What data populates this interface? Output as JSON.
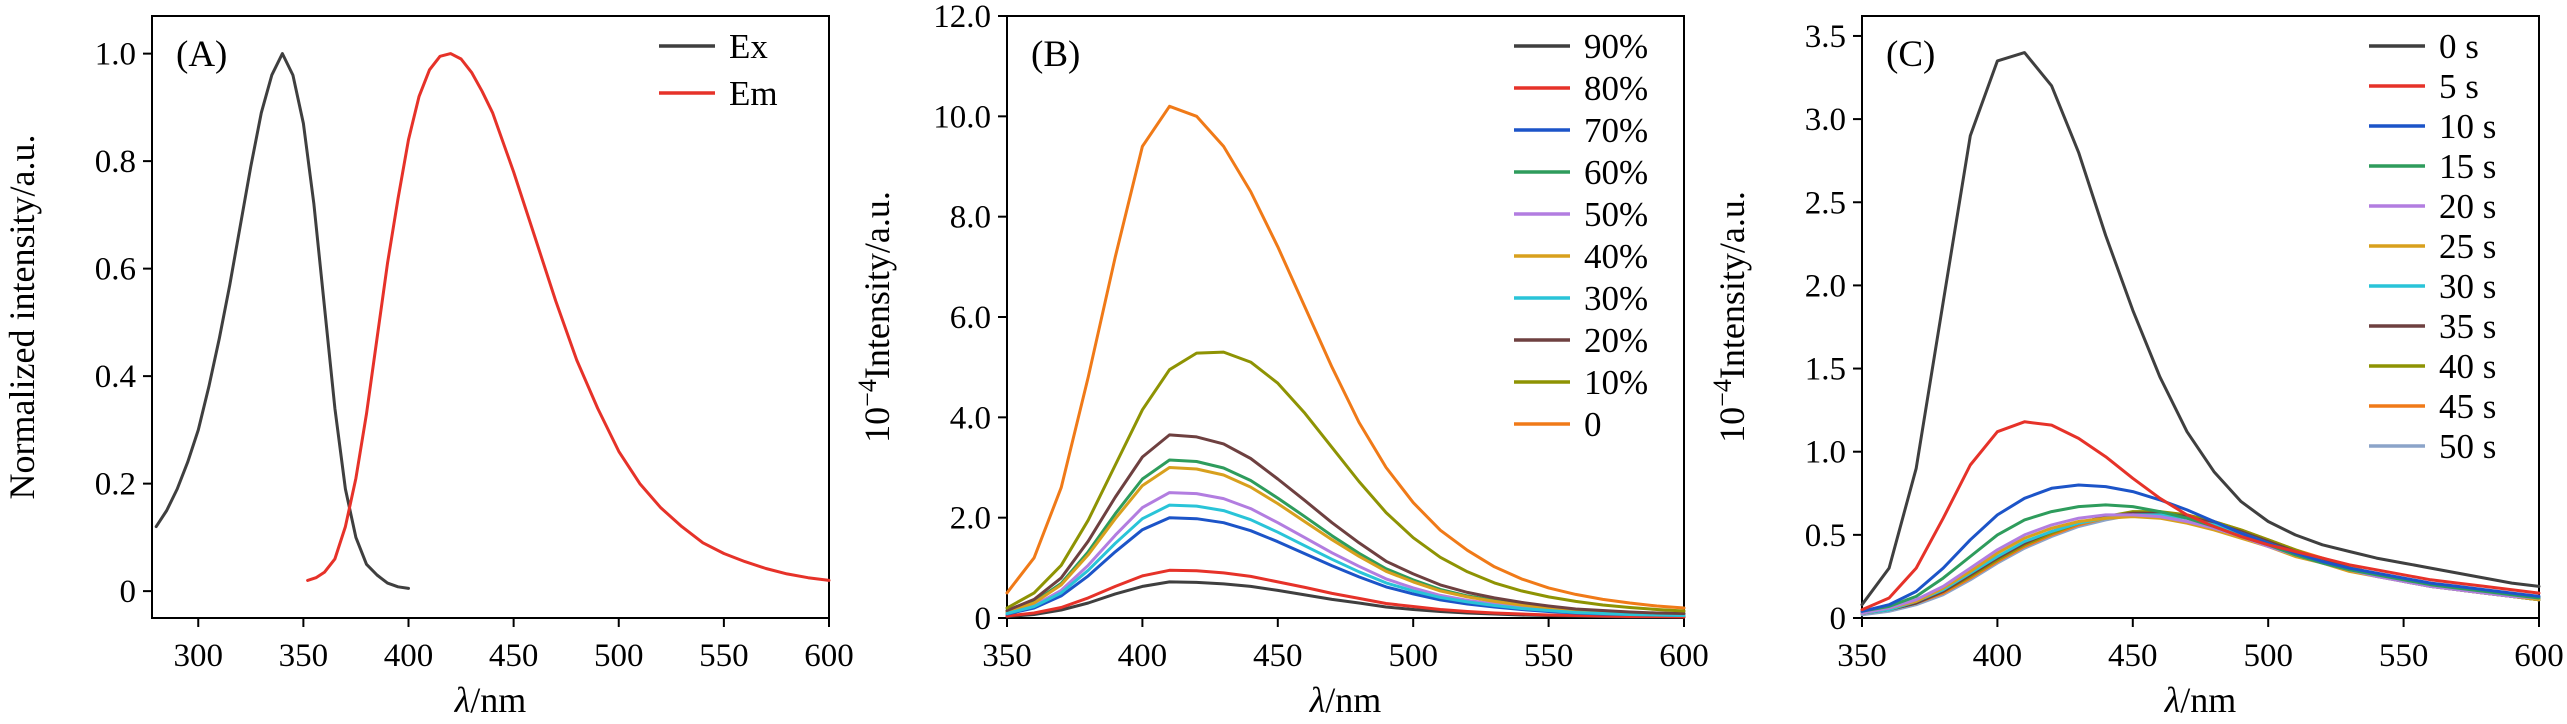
{
  "figure_title": "",
  "chart_data": [
    {
      "type": "line",
      "panel_label": "(A)",
      "xlabel": [
        {
          "t": "λ",
          "i": true
        },
        {
          "t": "/nm"
        }
      ],
      "ylabel": [
        {
          "t": "Normalized intensity/a.u."
        }
      ],
      "xlim": [
        278,
        600
      ],
      "ylim": [
        -0.05,
        1.07
      ],
      "xticks": {
        "values": [
          300,
          350,
          400,
          450,
          500,
          550,
          600
        ],
        "labels": [
          "300",
          "350",
          "400",
          "450",
          "500",
          "550",
          "600"
        ]
      },
      "yticks": {
        "values": [
          0,
          0.2,
          0.4,
          0.6,
          0.8,
          1.0
        ],
        "labels": [
          "0",
          "0.2",
          "0.4",
          "0.6",
          "0.8",
          "1.0"
        ]
      },
      "legend": {
        "position": "top-right"
      },
      "draw_reversed": false,
      "series": [
        {
          "name": "Ex",
          "color": "#3f3f3f",
          "x": [
            280,
            285,
            290,
            295,
            300,
            305,
            310,
            315,
            320,
            325,
            330,
            335,
            340,
            345,
            350,
            355,
            360,
            365,
            370,
            375,
            380,
            385,
            390,
            395,
            400
          ],
          "y": [
            0.12,
            0.15,
            0.19,
            0.24,
            0.3,
            0.38,
            0.47,
            0.57,
            0.68,
            0.79,
            0.89,
            0.96,
            1.0,
            0.96,
            0.87,
            0.72,
            0.53,
            0.34,
            0.19,
            0.1,
            0.05,
            0.03,
            0.015,
            0.008,
            0.005
          ]
        },
        {
          "name": "Em",
          "color": "#e63229",
          "x": [
            352,
            356,
            360,
            365,
            370,
            375,
            380,
            385,
            390,
            395,
            400,
            405,
            410,
            415,
            420,
            425,
            430,
            435,
            440,
            450,
            460,
            470,
            480,
            490,
            500,
            510,
            520,
            530,
            540,
            550,
            560,
            570,
            580,
            590,
            600
          ],
          "y": [
            0.02,
            0.025,
            0.035,
            0.06,
            0.12,
            0.21,
            0.33,
            0.47,
            0.61,
            0.73,
            0.84,
            0.92,
            0.97,
            0.995,
            1.0,
            0.99,
            0.965,
            0.93,
            0.89,
            0.78,
            0.66,
            0.54,
            0.43,
            0.34,
            0.26,
            0.2,
            0.155,
            0.12,
            0.09,
            0.07,
            0.055,
            0.042,
            0.032,
            0.025,
            0.02
          ]
        }
      ]
    },
    {
      "type": "line",
      "panel_label": "(B)",
      "xlabel": [
        {
          "t": "λ",
          "i": true
        },
        {
          "t": "/nm"
        }
      ],
      "ylabel": [
        {
          "t": "10"
        },
        {
          "t": "−4",
          "sup": true
        },
        {
          "t": "Intensity/a.u."
        }
      ],
      "xlim": [
        350,
        600
      ],
      "ylim": [
        0,
        12
      ],
      "xticks": {
        "values": [
          350,
          400,
          450,
          500,
          550,
          600
        ],
        "labels": [
          "350",
          "400",
          "450",
          "500",
          "550",
          "600"
        ]
      },
      "yticks": {
        "values": [
          0,
          2,
          4,
          6,
          8,
          10,
          12
        ],
        "labels": [
          "0",
          "2.0",
          "4.0",
          "6.0",
          "8.0",
          "10.0",
          "12.0"
        ]
      },
      "legend": {
        "position": "top-right"
      },
      "draw_reversed": false,
      "x_shared": [
        350,
        360,
        370,
        380,
        390,
        400,
        410,
        420,
        430,
        440,
        450,
        460,
        470,
        480,
        490,
        500,
        510,
        520,
        530,
        540,
        550,
        560,
        570,
        580,
        590,
        600
      ],
      "series": [
        {
          "name": "90%",
          "color": "#3f3f3f",
          "y": [
            0.03,
            0.07,
            0.16,
            0.3,
            0.48,
            0.63,
            0.72,
            0.71,
            0.68,
            0.63,
            0.55,
            0.46,
            0.37,
            0.3,
            0.22,
            0.17,
            0.13,
            0.1,
            0.08,
            0.06,
            0.05,
            0.04,
            0.03,
            0.02,
            0.02,
            0.02
          ]
        },
        {
          "name": "80%",
          "color": "#e63229",
          "y": [
            0.04,
            0.1,
            0.21,
            0.4,
            0.63,
            0.84,
            0.95,
            0.94,
            0.9,
            0.83,
            0.72,
            0.61,
            0.49,
            0.39,
            0.29,
            0.23,
            0.17,
            0.13,
            0.1,
            0.08,
            0.06,
            0.05,
            0.04,
            0.03,
            0.03,
            0.02
          ]
        },
        {
          "name": "70%",
          "color": "#1c54c8",
          "y": [
            0.08,
            0.2,
            0.44,
            0.84,
            1.32,
            1.76,
            2.0,
            1.98,
            1.9,
            1.74,
            1.52,
            1.28,
            1.04,
            0.82,
            0.62,
            0.48,
            0.36,
            0.28,
            0.22,
            0.17,
            0.13,
            0.1,
            0.08,
            0.07,
            0.06,
            0.05
          ]
        },
        {
          "name": "60%",
          "color": "#2e9c5c",
          "y": [
            0.13,
            0.32,
            0.69,
            1.32,
            2.08,
            2.77,
            3.15,
            3.12,
            2.99,
            2.74,
            2.39,
            2.02,
            1.64,
            1.29,
            0.98,
            0.76,
            0.57,
            0.44,
            0.35,
            0.27,
            0.2,
            0.16,
            0.13,
            0.1,
            0.09,
            0.08
          ]
        },
        {
          "name": "50%",
          "color": "#b27de0",
          "y": [
            0.1,
            0.25,
            0.55,
            1.05,
            1.65,
            2.2,
            2.5,
            2.48,
            2.38,
            2.18,
            1.9,
            1.6,
            1.3,
            1.03,
            0.78,
            0.6,
            0.45,
            0.35,
            0.28,
            0.21,
            0.16,
            0.13,
            0.1,
            0.08,
            0.07,
            0.06
          ]
        },
        {
          "name": "40%",
          "color": "#d8a01d",
          "y": [
            0.12,
            0.3,
            0.66,
            1.26,
            1.98,
            2.64,
            3.0,
            2.97,
            2.85,
            2.61,
            2.28,
            1.92,
            1.56,
            1.23,
            0.93,
            0.72,
            0.54,
            0.42,
            0.33,
            0.26,
            0.2,
            0.15,
            0.12,
            0.1,
            0.08,
            0.07
          ]
        },
        {
          "name": "30%",
          "color": "#29c4d8",
          "y": [
            0.09,
            0.23,
            0.5,
            0.95,
            1.49,
            1.98,
            2.25,
            2.23,
            2.14,
            1.96,
            1.71,
            1.44,
            1.17,
            0.92,
            0.7,
            0.54,
            0.41,
            0.32,
            0.25,
            0.19,
            0.15,
            0.11,
            0.09,
            0.07,
            0.06,
            0.05
          ]
        },
        {
          "name": "20%",
          "color": "#6e4040",
          "y": [
            0.15,
            0.37,
            0.8,
            1.53,
            2.41,
            3.21,
            3.65,
            3.61,
            3.47,
            3.18,
            2.77,
            2.34,
            1.9,
            1.5,
            1.13,
            0.88,
            0.66,
            0.51,
            0.4,
            0.31,
            0.24,
            0.18,
            0.15,
            0.12,
            0.1,
            0.09
          ]
        },
        {
          "name": "10%",
          "color": "#8e9303",
          "y": [
            0.2,
            0.5,
            1.05,
            1.95,
            3.05,
            4.15,
            4.95,
            5.28,
            5.3,
            5.1,
            4.68,
            4.08,
            3.4,
            2.72,
            2.1,
            1.6,
            1.21,
            0.92,
            0.7,
            0.54,
            0.42,
            0.33,
            0.26,
            0.21,
            0.17,
            0.14
          ]
        },
        {
          "name": "0",
          "color": "#f07a18",
          "y": [
            0.5,
            1.2,
            2.6,
            4.8,
            7.2,
            9.4,
            10.2,
            10.0,
            9.4,
            8.5,
            7.4,
            6.2,
            5.0,
            3.9,
            3.0,
            2.3,
            1.75,
            1.35,
            1.02,
            0.78,
            0.6,
            0.47,
            0.37,
            0.3,
            0.24,
            0.2
          ]
        }
      ]
    },
    {
      "type": "line",
      "panel_label": "(C)",
      "xlabel": [
        {
          "t": "λ",
          "i": true
        },
        {
          "t": "/nm"
        }
      ],
      "ylabel": [
        {
          "t": "10"
        },
        {
          "t": "−4",
          "sup": true
        },
        {
          "t": "Intensity/a.u."
        }
      ],
      "xlim": [
        350,
        600
      ],
      "ylim": [
        0,
        3.62
      ],
      "xticks": {
        "values": [
          350,
          400,
          450,
          500,
          550,
          600
        ],
        "labels": [
          "350",
          "400",
          "450",
          "500",
          "550",
          "600"
        ]
      },
      "yticks": {
        "values": [
          0,
          0.5,
          1.0,
          1.5,
          2.0,
          2.5,
          3.0,
          3.5
        ],
        "labels": [
          "0",
          "0.5",
          "1.0",
          "1.5",
          "2.0",
          "2.5",
          "3.0",
          "3.5"
        ]
      },
      "legend": {
        "position": "top-right"
      },
      "draw_reversed": true,
      "x_shared": [
        350,
        360,
        370,
        380,
        390,
        400,
        410,
        420,
        430,
        440,
        450,
        460,
        470,
        480,
        490,
        500,
        510,
        520,
        530,
        540,
        550,
        560,
        570,
        580,
        590,
        600
      ],
      "series": [
        {
          "name": "0 s",
          "color": "#3f3f3f",
          "y": [
            0.08,
            0.3,
            0.9,
            1.9,
            2.9,
            3.35,
            3.4,
            3.2,
            2.8,
            2.3,
            1.85,
            1.45,
            1.12,
            0.88,
            0.7,
            0.58,
            0.5,
            0.44,
            0.4,
            0.36,
            0.33,
            0.3,
            0.27,
            0.24,
            0.21,
            0.19
          ]
        },
        {
          "name": "5 s",
          "color": "#e63229",
          "y": [
            0.05,
            0.12,
            0.3,
            0.6,
            0.92,
            1.12,
            1.18,
            1.16,
            1.08,
            0.97,
            0.84,
            0.72,
            0.62,
            0.55,
            0.49,
            0.44,
            0.4,
            0.36,
            0.32,
            0.29,
            0.26,
            0.23,
            0.21,
            0.19,
            0.17,
            0.15
          ]
        },
        {
          "name": "10 s",
          "color": "#1c54c8",
          "y": [
            0.04,
            0.08,
            0.16,
            0.3,
            0.47,
            0.62,
            0.72,
            0.78,
            0.8,
            0.79,
            0.76,
            0.71,
            0.65,
            0.58,
            0.51,
            0.45,
            0.39,
            0.34,
            0.3,
            0.27,
            0.24,
            0.21,
            0.19,
            0.17,
            0.15,
            0.13
          ]
        },
        {
          "name": "15 s",
          "color": "#2e9c5c",
          "y": [
            0.04,
            0.07,
            0.13,
            0.24,
            0.37,
            0.5,
            0.59,
            0.64,
            0.67,
            0.68,
            0.67,
            0.64,
            0.6,
            0.55,
            0.49,
            0.44,
            0.38,
            0.33,
            0.29,
            0.26,
            0.23,
            0.2,
            0.18,
            0.16,
            0.14,
            0.12
          ]
        },
        {
          "name": "20 s",
          "color": "#b27de0",
          "y": [
            0.03,
            0.06,
            0.11,
            0.19,
            0.3,
            0.41,
            0.5,
            0.56,
            0.6,
            0.62,
            0.62,
            0.61,
            0.58,
            0.54,
            0.49,
            0.43,
            0.38,
            0.33,
            0.29,
            0.25,
            0.22,
            0.19,
            0.17,
            0.15,
            0.13,
            0.12
          ]
        },
        {
          "name": "25 s",
          "color": "#d8a01d",
          "y": [
            0.03,
            0.06,
            0.1,
            0.18,
            0.28,
            0.39,
            0.48,
            0.54,
            0.58,
            0.6,
            0.61,
            0.6,
            0.57,
            0.53,
            0.48,
            0.43,
            0.37,
            0.33,
            0.28,
            0.25,
            0.22,
            0.19,
            0.17,
            0.15,
            0.13,
            0.11
          ]
        },
        {
          "name": "30 s",
          "color": "#29c4d8",
          "y": [
            0.03,
            0.05,
            0.1,
            0.17,
            0.27,
            0.37,
            0.46,
            0.52,
            0.57,
            0.6,
            0.62,
            0.62,
            0.6,
            0.56,
            0.51,
            0.45,
            0.39,
            0.34,
            0.29,
            0.25,
            0.22,
            0.19,
            0.17,
            0.15,
            0.13,
            0.11
          ]
        },
        {
          "name": "35 s",
          "color": "#6e4040",
          "y": [
            0.03,
            0.05,
            0.09,
            0.16,
            0.26,
            0.36,
            0.45,
            0.52,
            0.57,
            0.61,
            0.63,
            0.63,
            0.61,
            0.57,
            0.52,
            0.46,
            0.4,
            0.35,
            0.3,
            0.26,
            0.22,
            0.19,
            0.17,
            0.15,
            0.13,
            0.11
          ]
        },
        {
          "name": "40 s",
          "color": "#8e9303",
          "y": [
            0.03,
            0.05,
            0.09,
            0.16,
            0.25,
            0.35,
            0.44,
            0.51,
            0.57,
            0.61,
            0.64,
            0.64,
            0.62,
            0.58,
            0.53,
            0.47,
            0.41,
            0.35,
            0.3,
            0.26,
            0.23,
            0.2,
            0.17,
            0.15,
            0.13,
            0.11
          ]
        },
        {
          "name": "45 s",
          "color": "#f07a18",
          "y": [
            0.03,
            0.05,
            0.09,
            0.15,
            0.24,
            0.34,
            0.43,
            0.5,
            0.56,
            0.6,
            0.63,
            0.63,
            0.62,
            0.58,
            0.53,
            0.47,
            0.41,
            0.36,
            0.31,
            0.26,
            0.23,
            0.2,
            0.17,
            0.15,
            0.13,
            0.11
          ]
        },
        {
          "name": "50 s",
          "color": "#8ba4c9",
          "y": [
            0.02,
            0.04,
            0.08,
            0.14,
            0.23,
            0.33,
            0.42,
            0.49,
            0.55,
            0.59,
            0.62,
            0.62,
            0.61,
            0.57,
            0.52,
            0.46,
            0.4,
            0.35,
            0.3,
            0.26,
            0.22,
            0.19,
            0.17,
            0.15,
            0.13,
            0.11
          ]
        }
      ]
    }
  ]
}
